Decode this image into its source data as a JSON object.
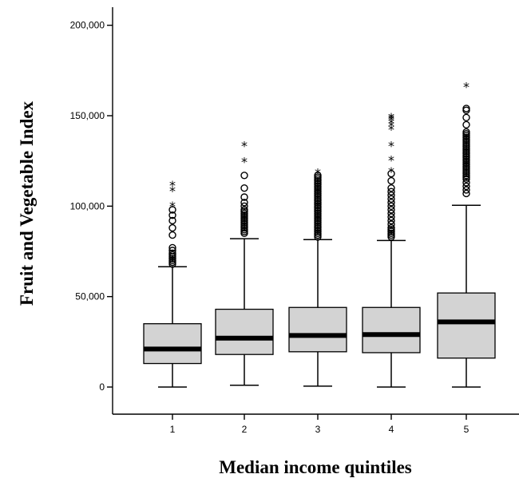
{
  "chart_data": {
    "type": "box",
    "xlabel": "Median income quintiles",
    "ylabel": "Fruit and Vegetable Index",
    "ylim": [
      -15000,
      210000
    ],
    "yticks": [
      0,
      50000,
      100000,
      150000,
      200000
    ],
    "ytick_labels": [
      "0",
      "50,000",
      "100,000",
      "150,000",
      "200,000"
    ],
    "categories": [
      "1",
      "2",
      "3",
      "4",
      "5"
    ],
    "boxes": [
      {
        "category": "1",
        "whisker_low": 0,
        "q1": 13000,
        "median": 21000,
        "q3": 35000,
        "whisker_high": 66500,
        "outliers": [
          68000,
          69000,
          70000,
          71000,
          72000,
          73000,
          74000,
          75500,
          77000,
          84000,
          88000,
          92000,
          95000,
          98000
        ],
        "extremes": [
          100500,
          109000,
          112000
        ]
      },
      {
        "category": "2",
        "whisker_low": 1000,
        "q1": 18000,
        "median": 27000,
        "q3": 43000,
        "whisker_high": 82000,
        "outliers": [
          85000,
          86000,
          87000,
          88000,
          89000,
          90000,
          91000,
          92000,
          93000,
          94000,
          95000,
          96000,
          97000,
          98000,
          100000,
          102000,
          105000,
          110000,
          117000
        ],
        "extremes": [
          125000,
          134000
        ]
      },
      {
        "category": "3",
        "whisker_low": 500,
        "q1": 19500,
        "median": 28500,
        "q3": 44000,
        "whisker_high": 81500,
        "outliers": [
          83000,
          84000,
          85000,
          86000,
          87000,
          88000,
          89000,
          90000,
          91000,
          92000,
          93000,
          94000,
          95000,
          96000,
          97000,
          98000,
          99000,
          100000,
          101000,
          102000,
          103000,
          104000,
          105000,
          106000,
          107000,
          108000,
          109000,
          110000,
          111000,
          112000,
          113000,
          114000,
          115000,
          116000,
          117000
        ],
        "extremes": [
          119000
        ]
      },
      {
        "category": "4",
        "whisker_low": 0,
        "q1": 19000,
        "median": 29000,
        "q3": 44000,
        "whisker_high": 81000,
        "outliers": [
          83000,
          84000,
          85000,
          86000,
          87000,
          88000,
          90000,
          92000,
          94000,
          96000,
          98000,
          100000,
          102000,
          104000,
          106000,
          108000,
          110000,
          114000,
          118000
        ],
        "extremes": [
          119500,
          126000,
          134000,
          143000,
          145000,
          146500,
          148000,
          149000,
          149500
        ]
      },
      {
        "category": "5",
        "whisker_low": 0,
        "q1": 16000,
        "median": 36000,
        "q3": 52000,
        "whisker_high": 100500,
        "outliers": [
          107000,
          109000,
          111000,
          113000,
          115000,
          116000,
          117000,
          118000,
          119000,
          120000,
          121000,
          122000,
          123000,
          124000,
          125000,
          126000,
          127000,
          128000,
          129000,
          130000,
          131000,
          132000,
          133000,
          134000,
          135000,
          136000,
          137000,
          138000,
          139000,
          140000,
          141000,
          145000,
          149000,
          153000,
          154000
        ],
        "extremes": [
          166500
        ]
      }
    ]
  }
}
